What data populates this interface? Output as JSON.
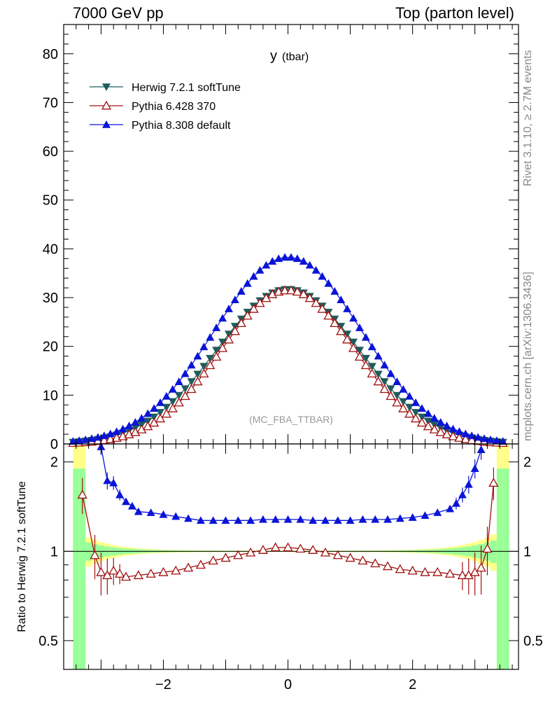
{
  "header": {
    "left": "7000 GeV pp",
    "right": "Top (parton level)"
  },
  "side_labels": {
    "rivet": "Rivet 3.1.10, ≥ 2.7M events",
    "mcplots": "mcplots.cern.ch [arXiv:1306.3436]"
  },
  "plot_title_main": "y",
  "plot_title_sub": "(tbar)",
  "watermark": "(MC_FBA_TTBAR)",
  "ratio_ylabel": "Ratio to Herwig 7.2.1 softTune",
  "colors": {
    "herwig": "#1f5c5c",
    "pythia6": "#a01010",
    "pythia8": "#0a14d8",
    "band_inner": "#99ff99",
    "band_outer": "#ffff88"
  },
  "chart_data": [
    {
      "type": "line",
      "panel": "main",
      "xlim": [
        -3.6,
        3.7
      ],
      "ylim": [
        0,
        86
      ],
      "yticks": [
        0,
        10,
        20,
        30,
        40,
        50,
        60,
        70,
        80
      ],
      "legend_position": "top-left",
      "series": [
        {
          "name": "Herwig 7.2.1 softTune",
          "key": "herwig",
          "marker": "triangle-down-filled",
          "peak": 31.7,
          "width": 1.15
        },
        {
          "name": "Pythia 6.428 370",
          "key": "pythia6",
          "marker": "triangle-up-open",
          "peak": 31.5,
          "width": 1.08
        },
        {
          "name": "Pythia 8.308 default",
          "key": "pythia8",
          "marker": "triangle-up-filled",
          "peak": 38.3,
          "width": 1.18
        }
      ]
    },
    {
      "type": "line",
      "panel": "ratio",
      "xlim": [
        -3.6,
        3.7
      ],
      "ylim": [
        0.4,
        2.3
      ],
      "xticks": [
        -2,
        0,
        2
      ],
      "yticks": [
        0.5,
        1,
        2
      ],
      "reference_line": 1,
      "series": [
        {
          "name": "Pythia 6.428 370",
          "key": "pythia6",
          "x": [
            -3.3,
            -3.1,
            -3.0,
            -2.9,
            -2.8,
            -2.7,
            -2.6,
            -2.4,
            -2.2,
            -2.0,
            -1.8,
            -1.6,
            -1.4,
            -1.2,
            -1.0,
            -0.8,
            -0.6,
            -0.4,
            -0.2,
            0.0,
            0.2,
            0.4,
            0.6,
            0.8,
            1.0,
            1.2,
            1.4,
            1.6,
            1.8,
            2.0,
            2.2,
            2.4,
            2.6,
            2.8,
            2.9,
            3.0,
            3.1,
            3.2,
            3.3
          ],
          "y": [
            1.55,
            0.97,
            0.85,
            0.83,
            0.86,
            0.84,
            0.82,
            0.83,
            0.84,
            0.85,
            0.86,
            0.88,
            0.9,
            0.93,
            0.95,
            0.97,
            0.99,
            1.01,
            1.03,
            1.03,
            1.02,
            1.01,
            0.99,
            0.97,
            0.95,
            0.93,
            0.91,
            0.89,
            0.87,
            0.86,
            0.85,
            0.85,
            0.84,
            0.83,
            0.83,
            0.85,
            0.88,
            1.02,
            1.7
          ]
        },
        {
          "name": "Pythia 8.308 default",
          "key": "pythia8",
          "x": [
            -3.0,
            -2.9,
            -2.8,
            -2.7,
            -2.6,
            -2.5,
            -2.4,
            -2.2,
            -2.0,
            -1.8,
            -1.6,
            -1.4,
            -1.2,
            -1.0,
            -0.8,
            -0.6,
            -0.4,
            -0.2,
            0.0,
            0.2,
            0.4,
            0.6,
            0.8,
            1.0,
            1.2,
            1.4,
            1.6,
            1.8,
            2.0,
            2.2,
            2.4,
            2.6,
            2.7,
            2.8,
            2.9,
            3.0,
            3.1
          ],
          "y": [
            2.25,
            1.73,
            1.7,
            1.55,
            1.47,
            1.42,
            1.36,
            1.35,
            1.33,
            1.31,
            1.29,
            1.27,
            1.27,
            1.27,
            1.27,
            1.27,
            1.28,
            1.28,
            1.28,
            1.28,
            1.27,
            1.27,
            1.27,
            1.27,
            1.28,
            1.28,
            1.28,
            1.29,
            1.3,
            1.32,
            1.35,
            1.39,
            1.45,
            1.55,
            1.68,
            1.9,
            2.2
          ]
        }
      ]
    }
  ]
}
